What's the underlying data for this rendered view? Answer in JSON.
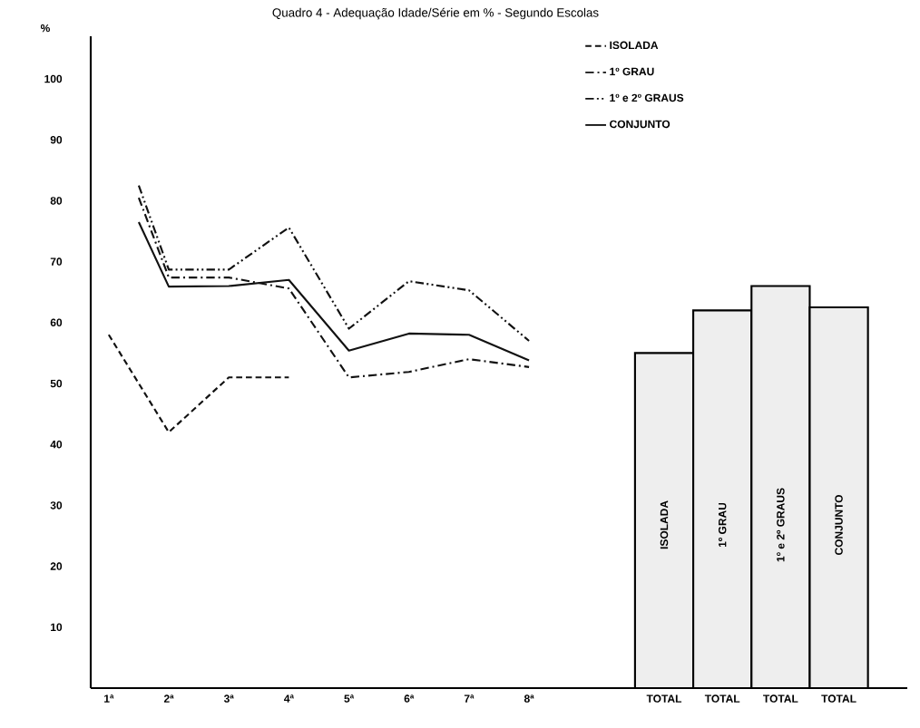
{
  "chart_data": {
    "type": "line",
    "title": "Quadro 4 - Adequação Idade/Série em % - Segundo Escolas",
    "ylabel": "%",
    "xlim": [
      0.7,
      14.3
    ],
    "ylim": [
      0,
      107
    ],
    "xticks": [
      {
        "value": 1,
        "label": "1ª"
      },
      {
        "value": 2,
        "label": "2ª"
      },
      {
        "value": 3,
        "label": "3ª"
      },
      {
        "value": 4,
        "label": "4ª"
      },
      {
        "value": 5,
        "label": "5ª"
      },
      {
        "value": 6,
        "label": "6ª"
      },
      {
        "value": 7,
        "label": "7ª"
      },
      {
        "value": 8,
        "label": "8ª"
      },
      {
        "value": 10.25,
        "label": "TOTAL"
      },
      {
        "value": 11.22,
        "label": "TOTAL"
      },
      {
        "value": 12.19,
        "label": "TOTAL"
      },
      {
        "value": 13.16,
        "label": "TOTAL"
      }
    ],
    "yticks": [
      10,
      20,
      30,
      40,
      50,
      60,
      70,
      80,
      90,
      100
    ],
    "legend": "top right",
    "marker": "none",
    "series": [
      {
        "name": "ISOLADA",
        "color": "#111111",
        "line_style": "dashed",
        "x": [
          1,
          2,
          3,
          4
        ],
        "values": [
          58,
          42,
          51,
          51
        ]
      },
      {
        "name": "1º GRAU",
        "color": "#111111",
        "line_style": "dashdot",
        "x": [
          1.5,
          2,
          3,
          4,
          5,
          6,
          7,
          8
        ],
        "values": [
          80.5,
          67.4,
          67.4,
          65.6,
          51,
          51.9,
          54,
          52.7
        ]
      },
      {
        "name": "1º e 2º GRAUS",
        "color": "#111111",
        "line_style": "dashdotdot",
        "x": [
          1.5,
          2,
          3,
          4,
          5,
          6,
          7,
          8
        ],
        "values": [
          82.5,
          68.7,
          68.7,
          75.6,
          59,
          66.8,
          65.3,
          57
        ]
      },
      {
        "name": "CONJUNTO",
        "color": "#111111",
        "line_style": "solid",
        "x": [
          1.5,
          2,
          3,
          4,
          5,
          6,
          7,
          8
        ],
        "values": [
          76.5,
          65.9,
          66,
          67,
          55.4,
          58.2,
          58,
          53.8
        ]
      },
      {
        "type": "bar",
        "color": "#eeeeee",
        "x": [
          10.25,
          11.22,
          12.19,
          13.16
        ],
        "values": [
          55,
          62,
          66,
          62.5
        ]
      }
    ],
    "annotations": [
      "ISOLADA",
      "1º GRAU",
      "1º e 2º GRAUS",
      "CONJUNTO"
    ]
  }
}
